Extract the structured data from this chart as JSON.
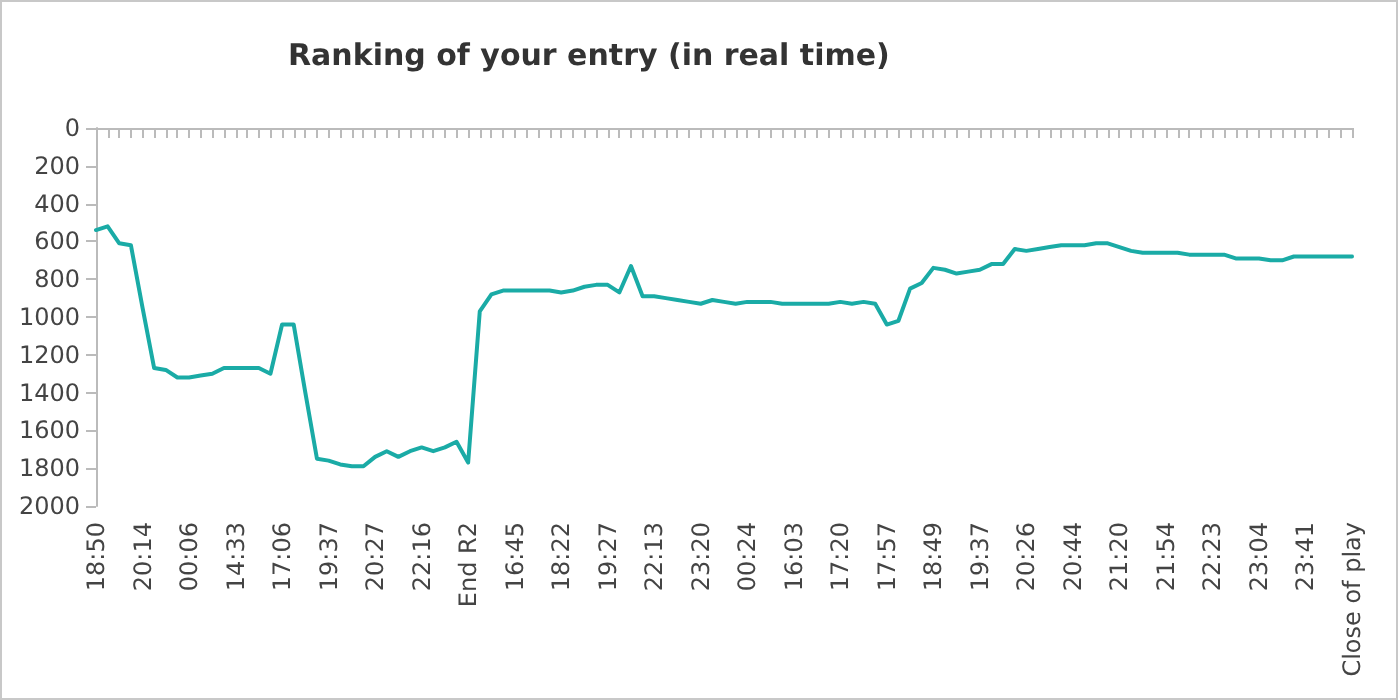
{
  "chart_data": {
    "type": "line",
    "title": "Ranking of your entry (in real time)",
    "categories": [
      "18:50",
      null,
      null,
      null,
      "20:14",
      null,
      null,
      null,
      "00:06",
      null,
      null,
      null,
      "14:33",
      null,
      null,
      null,
      "17:06",
      null,
      null,
      null,
      "19:37",
      null,
      null,
      null,
      "20:27",
      null,
      null,
      null,
      "22:16",
      null,
      null,
      null,
      "End R2",
      null,
      null,
      null,
      "16:45",
      null,
      null,
      null,
      "18:22",
      null,
      null,
      null,
      "19:27",
      null,
      null,
      null,
      "22:13",
      null,
      null,
      null,
      "23:20",
      null,
      null,
      null,
      "00:24",
      null,
      null,
      null,
      "16:03",
      null,
      null,
      null,
      "17:20",
      null,
      null,
      null,
      "17:57",
      null,
      null,
      null,
      "18:49",
      null,
      null,
      null,
      "19:37",
      null,
      null,
      null,
      "20:26",
      null,
      null,
      null,
      "20:44",
      null,
      null,
      null,
      "21:20",
      null,
      null,
      null,
      "21:54",
      null,
      null,
      null,
      "22:23",
      null,
      null,
      null,
      "23:04",
      null,
      null,
      null,
      "23:41",
      null,
      null,
      null,
      "Close of play"
    ],
    "series": [
      {
        "color": "#1aaba6",
        "values": [
          540,
          520,
          610,
          620,
          950,
          1270,
          1280,
          1320,
          1320,
          1310,
          1300,
          1270,
          1270,
          1270,
          1270,
          1300,
          1040,
          1040,
          1400,
          1750,
          1760,
          1780,
          1790,
          1790,
          1740,
          1710,
          1740,
          1710,
          1690,
          1710,
          1690,
          1660,
          1770,
          970,
          880,
          860,
          860,
          860,
          860,
          860,
          870,
          860,
          840,
          830,
          830,
          870,
          730,
          890,
          890,
          900,
          910,
          920,
          930,
          910,
          920,
          930,
          920,
          920,
          920,
          930,
          930,
          930,
          930,
          930,
          920,
          930,
          920,
          930,
          1040,
          1020,
          850,
          820,
          740,
          750,
          770,
          760,
          750,
          720,
          720,
          640,
          650,
          640,
          630,
          620,
          620,
          620,
          610,
          610,
          630,
          650,
          660,
          660,
          660,
          660,
          670,
          670,
          670,
          670,
          690,
          690,
          690,
          700,
          700,
          680,
          680,
          680,
          680,
          680,
          680
        ]
      }
    ],
    "ylim": [
      2000,
      0
    ],
    "yticks": [
      0,
      200,
      400,
      600,
      800,
      1000,
      1200,
      1400,
      1600,
      1800,
      2000
    ],
    "grid": false,
    "marker": "none",
    "line_style": "solid"
  }
}
